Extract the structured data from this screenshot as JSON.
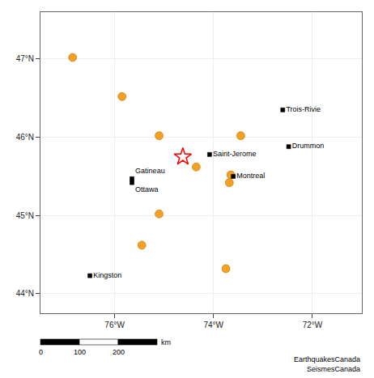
{
  "chart_data": {
    "type": "scatter",
    "xlim": [
      -77.5,
      -71.0
    ],
    "ylim": [
      43.75,
      47.6
    ],
    "xticks": [
      {
        "value": -76,
        "label": "76°W"
      },
      {
        "value": -74,
        "label": "74°W"
      },
      {
        "value": -72,
        "label": "72°W"
      }
    ],
    "yticks": [
      {
        "value": 44,
        "label": "44°N"
      },
      {
        "value": 45,
        "label": "45°N"
      },
      {
        "value": 46,
        "label": "46°N"
      },
      {
        "value": 47,
        "label": "47°N"
      }
    ],
    "grid": true,
    "series": [
      {
        "x": [
          -76.85,
          -75.85,
          -75.1,
          -73.45,
          -73.65,
          -73.68,
          -74.35,
          -75.1,
          -75.45,
          -73.75
        ],
        "values": [
          47.02,
          46.52,
          46.02,
          46.02,
          45.52,
          45.42,
          45.62,
          45.02,
          44.62,
          44.32
        ],
        "color": "#f5a020",
        "marker": "circle"
      },
      {
        "x": [
          -74.62
        ],
        "values": [
          45.75
        ],
        "color": "red",
        "marker": "star-open"
      },
      {
        "x": [
          -75.65,
          -75.65,
          -73.6,
          -74.08,
          -76.5,
          -72.6,
          -72.48
        ],
        "values": [
          45.47,
          45.42,
          45.5,
          45.78,
          44.23,
          46.35,
          45.88
        ],
        "labels": [
          "Gatineau",
          "Ottawa",
          "Montreal",
          "Saint-Jerome",
          "Kingston",
          "Trois-Rivie",
          "Drummon"
        ],
        "color": "black",
        "marker": "square"
      }
    ],
    "scale_bar": {
      "labels": [
        "0",
        "100",
        "200"
      ],
      "unit": "km"
    },
    "annotations": [
      "EarthquakesCanada\nSeismesCanada"
    ]
  }
}
